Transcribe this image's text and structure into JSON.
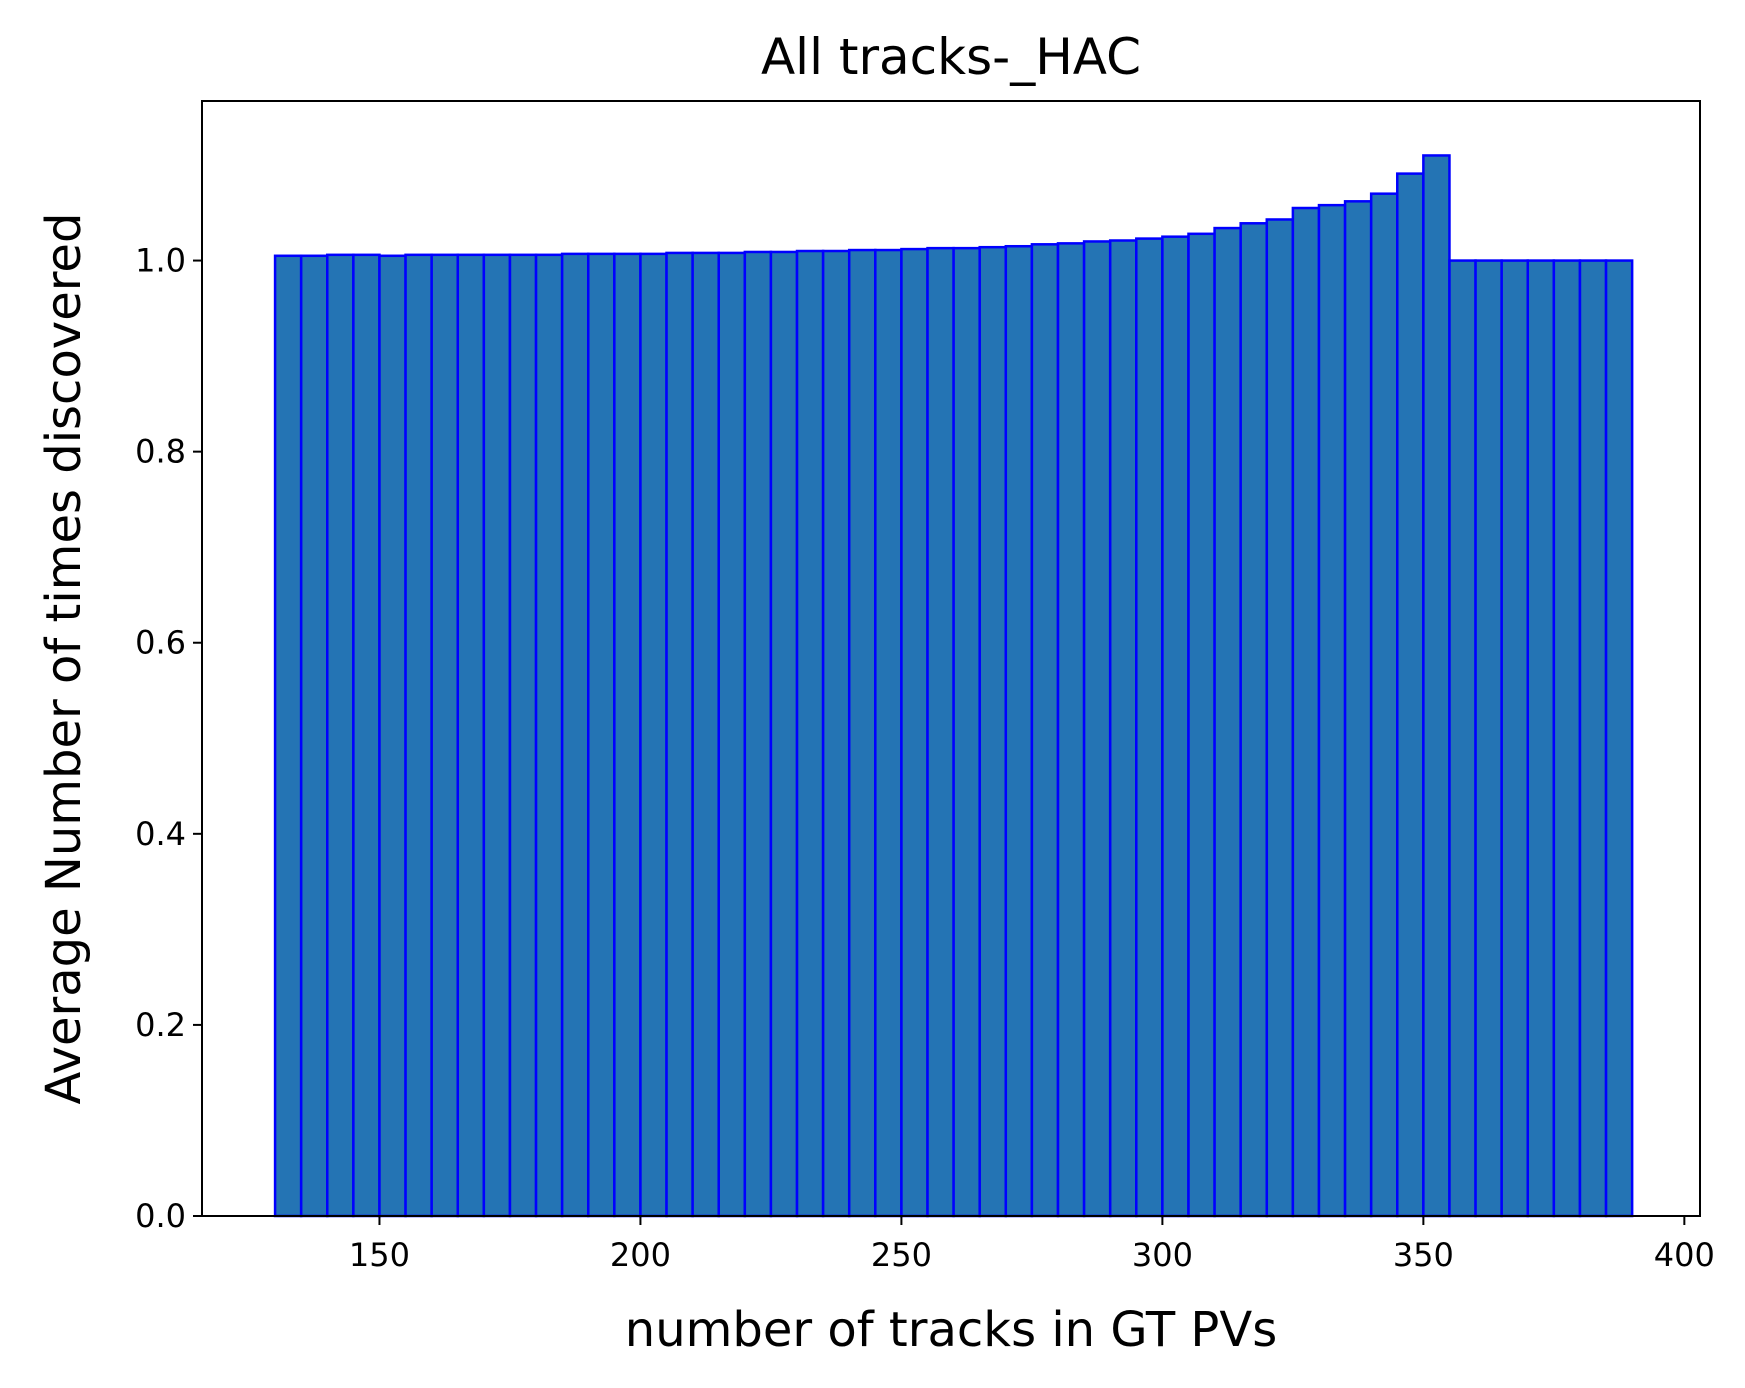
{
  "chart_data": {
    "type": "bar",
    "title": "All tracks-_HAC",
    "xlabel": "number of tracks in GT PVs",
    "ylabel": "Average Number of times discovered",
    "xlim": [
      116,
      403
    ],
    "ylim": [
      0,
      1.167
    ],
    "xticks": [
      150,
      200,
      250,
      300,
      350,
      400
    ],
    "xtick_labels": [
      "150",
      "200",
      "250",
      "300",
      "350",
      "400"
    ],
    "yticks": [
      0.0,
      0.2,
      0.4,
      0.6,
      0.8,
      1.0
    ],
    "ytick_labels": [
      "0.0",
      "0.2",
      "0.4",
      "0.6",
      "0.8",
      "1.0"
    ],
    "bin_width": 5,
    "bin_starts": [
      130,
      135,
      140,
      145,
      150,
      155,
      160,
      165,
      170,
      175,
      180,
      185,
      190,
      195,
      200,
      205,
      210,
      215,
      220,
      225,
      230,
      235,
      240,
      245,
      250,
      255,
      260,
      265,
      270,
      275,
      280,
      285,
      290,
      295,
      300,
      305,
      310,
      315,
      320,
      325,
      330,
      335,
      340,
      345,
      350,
      355,
      360,
      365,
      370,
      375,
      380,
      385
    ],
    "values": [
      1.005,
      1.005,
      1.006,
      1.006,
      1.005,
      1.006,
      1.006,
      1.006,
      1.006,
      1.006,
      1.006,
      1.007,
      1.007,
      1.007,
      1.007,
      1.008,
      1.008,
      1.008,
      1.009,
      1.009,
      1.01,
      1.01,
      1.011,
      1.011,
      1.012,
      1.013,
      1.013,
      1.014,
      1.015,
      1.017,
      1.018,
      1.02,
      1.021,
      1.023,
      1.025,
      1.028,
      1.034,
      1.039,
      1.043,
      1.055,
      1.058,
      1.062,
      1.07,
      1.091,
      1.11,
      1.0,
      1.0,
      1.0,
      1.0,
      1.0,
      1.0,
      1.0
    ],
    "colors": {
      "bar_fill": "#2474b4",
      "bar_edge": "#0000ff",
      "axes": "#000000"
    },
    "grid": false,
    "legend": "none"
  }
}
